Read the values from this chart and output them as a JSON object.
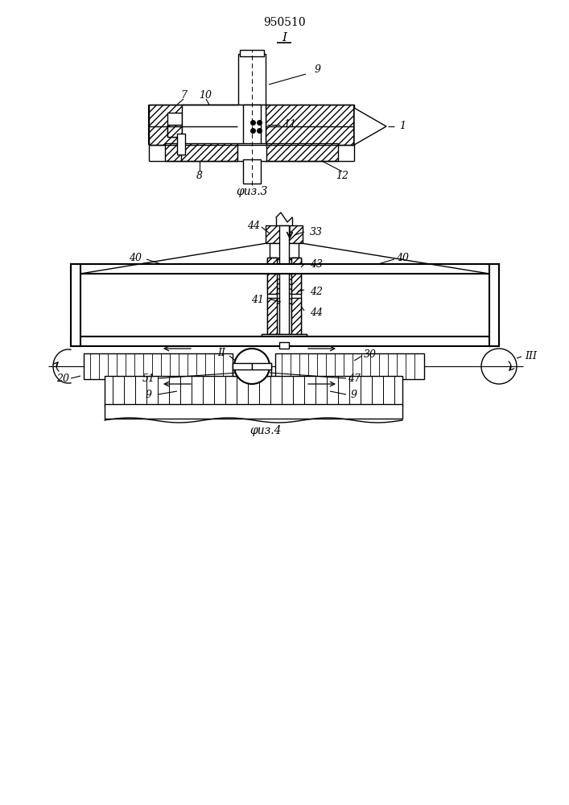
{
  "patent_number": "950510",
  "fig1_label": "I",
  "fig3_caption": "φиз.3",
  "fig4_caption": "φиз.4",
  "bg_color": "#ffffff",
  "line_color": "#000000"
}
